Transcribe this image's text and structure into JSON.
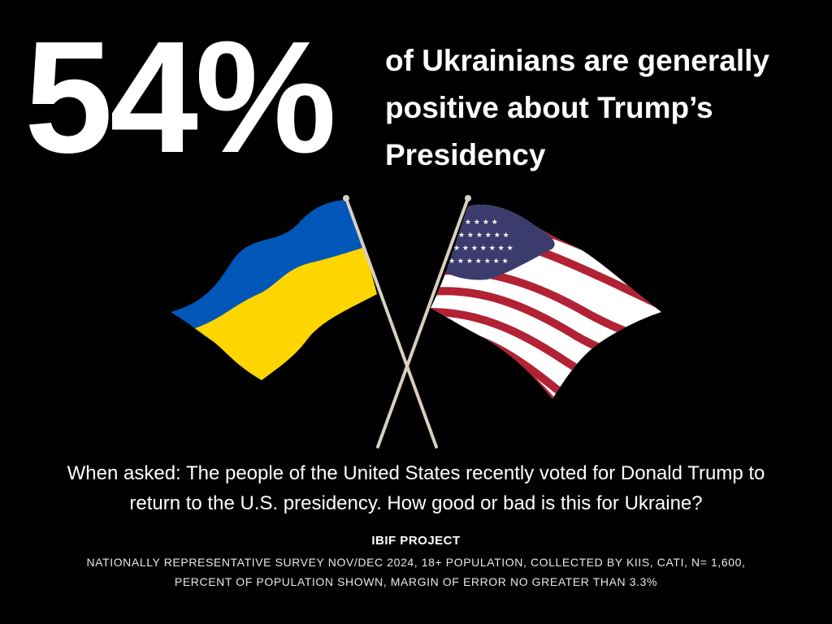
{
  "headline": {
    "stat": "54%",
    "lines": [
      "of Ukrainians are generally",
      "positive about Trump’s",
      "Presidency"
    ]
  },
  "graphic": {
    "ukraine_flag_colors": [
      "#0057B7",
      "#FFD500"
    ],
    "us_flag_colors": [
      "#B22234",
      "#FFFFFF",
      "#3C3B6E"
    ],
    "pole_color": "#D9CFC0"
  },
  "question": {
    "lines": [
      "When asked: The people of the United States recently voted for Donald Trump to",
      "return to the U.S. presidency. How good or bad is this for Ukraine?"
    ]
  },
  "source": {
    "title": "IBIF PROJECT",
    "detail_lines": [
      "NATIONALLY REPRESENTATIVE SURVEY NOV/DEC 2024, 18+ POPULATION, COLLECTED BY KIIS, CATI, N= 1,600,",
      "PERCENT OF POPULATION SHOWN, MARGIN OF ERROR NO GREATER THAN 3.3%"
    ]
  }
}
